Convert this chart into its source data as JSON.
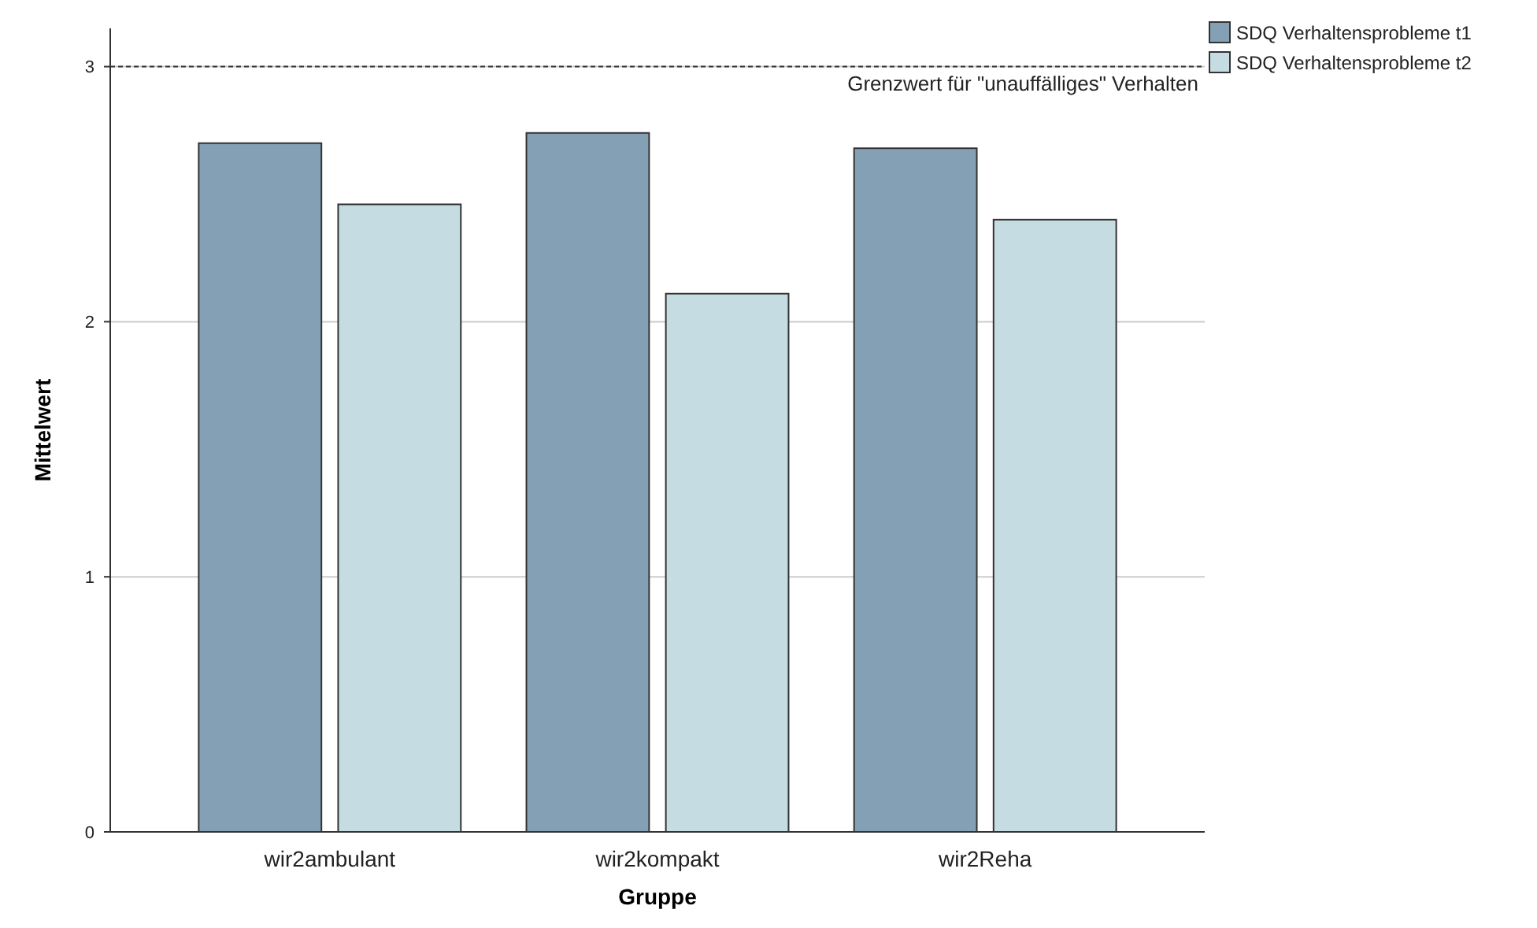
{
  "chart_data": {
    "type": "bar",
    "xlabel": "Gruppe",
    "ylabel": "Mittelwert",
    "categories": [
      "wir2ambulant",
      "wir2kompakt",
      "wir2Reha"
    ],
    "series": [
      {
        "name": "SDQ Verhaltensprobleme t1",
        "color": "#84a0b4",
        "values": [
          2.7,
          2.74,
          2.68
        ]
      },
      {
        "name": "SDQ Verhaltensprobleme t2",
        "color": "#c5dce2",
        "values": [
          2.46,
          2.11,
          2.4
        ]
      }
    ],
    "ylim": [
      0,
      3.15
    ],
    "yticks": [
      0,
      1,
      2,
      3
    ],
    "grid": "y",
    "legend": "top right",
    "ref_lines": [
      {
        "axis": "y",
        "value": 3,
        "label": "Grenzwert für \"unauffälliges\" Verhalten",
        "line_style": "dashed"
      }
    ]
  }
}
